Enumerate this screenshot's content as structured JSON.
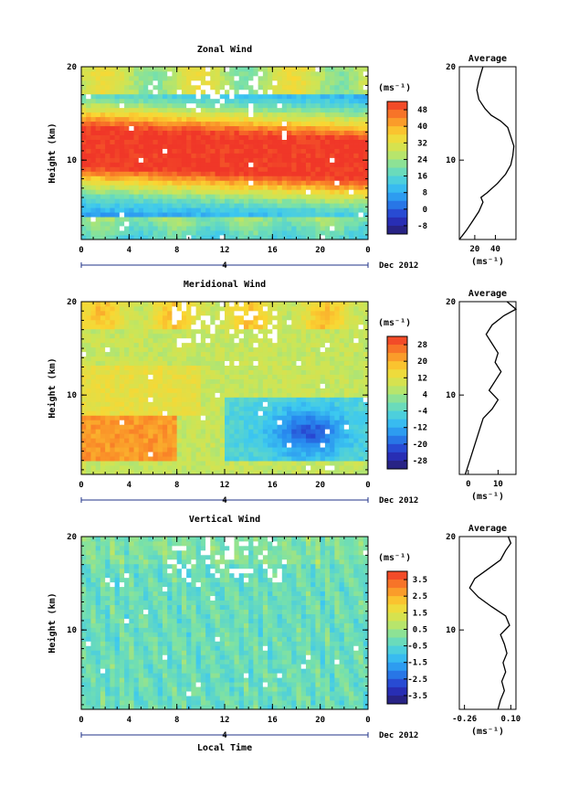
{
  "chart_data": [
    {
      "type": "heatmap",
      "name": "zonal",
      "title": "Zonal Wind",
      "ylabel": "Height (km)",
      "xlabel": "",
      "x_ticks": [
        "0",
        "4",
        "8",
        "12",
        "16",
        "20",
        "0"
      ],
      "y_ticks": [
        "10",
        "20"
      ],
      "xlim": [
        0,
        24
      ],
      "ylim": [
        1.5,
        20
      ],
      "date_marker": "4",
      "date_label": "Dec 2012",
      "colorbar": {
        "unit": "(ms⁻¹)",
        "ticks": [
          "48",
          "40",
          "32",
          "24",
          "16",
          "8",
          "0",
          "-8"
        ],
        "range": [
          -12,
          52
        ]
      },
      "average": {
        "title": "Average",
        "x_ticks": [
          "20",
          "40"
        ],
        "xlim": [
          5,
          60
        ],
        "unit": "(ms⁻¹)",
        "y_ticks": [
          "10",
          "20"
        ],
        "profile": [
          [
            5,
            1.5
          ],
          [
            12,
            2.5
          ],
          [
            18,
            3.5
          ],
          [
            24,
            4.5
          ],
          [
            28,
            5.5
          ],
          [
            26,
            6.0
          ],
          [
            32,
            6.5
          ],
          [
            42,
            7.5
          ],
          [
            50,
            8.5
          ],
          [
            55,
            9.5
          ],
          [
            57,
            10.5
          ],
          [
            58,
            11.5
          ],
          [
            55,
            12.5
          ],
          [
            52,
            13.5
          ],
          [
            45,
            14.2
          ],
          [
            36,
            14.8
          ],
          [
            30,
            15.5
          ],
          [
            24,
            16.5
          ],
          [
            22,
            17.5
          ],
          [
            24,
            18.5
          ],
          [
            26,
            19.3
          ],
          [
            28,
            20
          ]
        ]
      }
    },
    {
      "type": "heatmap",
      "name": "meridional",
      "title": "Meridional Wind",
      "ylabel": "Height (km)",
      "xlabel": "",
      "x_ticks": [
        "0",
        "4",
        "8",
        "12",
        "16",
        "20",
        "0"
      ],
      "y_ticks": [
        "10",
        "20"
      ],
      "xlim": [
        0,
        24
      ],
      "ylim": [
        1.5,
        20
      ],
      "date_marker": "4",
      "date_label": "Dec 2012",
      "colorbar": {
        "unit": "(ms⁻¹)",
        "ticks": [
          "28",
          "20",
          "12",
          "4",
          "-4",
          "-12",
          "-20",
          "-28"
        ],
        "range": [
          -32,
          32
        ]
      },
      "average": {
        "title": "Average",
        "x_ticks": [
          "0",
          "10"
        ],
        "xlim": [
          -3,
          16
        ],
        "unit": "(ms⁻¹)",
        "y_ticks": [
          "10",
          "20"
        ],
        "profile": [
          [
            -1,
            1.5
          ],
          [
            0,
            2.5
          ],
          [
            1,
            3.5
          ],
          [
            2,
            4.5
          ],
          [
            3,
            5.5
          ],
          [
            4,
            6.5
          ],
          [
            5,
            7.5
          ],
          [
            8,
            8.5
          ],
          [
            10,
            9.5
          ],
          [
            7,
            10.5
          ],
          [
            9,
            11.5
          ],
          [
            11,
            12.5
          ],
          [
            9,
            13.5
          ],
          [
            10,
            14.5
          ],
          [
            8,
            15.5
          ],
          [
            6,
            16.5
          ],
          [
            8,
            17.5
          ],
          [
            12,
            18.5
          ],
          [
            16,
            19.2
          ],
          [
            13,
            20
          ]
        ]
      }
    },
    {
      "type": "heatmap",
      "name": "vertical",
      "title": "Vertical Wind",
      "ylabel": "Height (km)",
      "xlabel": "Local Time",
      "x_ticks": [
        "0",
        "4",
        "8",
        "12",
        "16",
        "20",
        "0"
      ],
      "y_ticks": [
        "10",
        "20"
      ],
      "xlim": [
        0,
        24
      ],
      "ylim": [
        1.5,
        20
      ],
      "date_marker": "4",
      "date_label": "Dec 2012",
      "colorbar": {
        "unit": "(ms⁻¹)",
        "ticks": [
          "3.5",
          "2.5",
          "1.5",
          "0.5",
          "-0.5",
          "-1.5",
          "-2.5",
          "-3.5"
        ],
        "range": [
          -4,
          4
        ]
      },
      "average": {
        "title": "Average",
        "x_ticks": [
          "-0.26",
          "0.10"
        ],
        "xlim": [
          -0.3,
          0.14
        ],
        "unit": "(ms⁻¹)",
        "y_ticks": [
          "10",
          "20"
        ],
        "profile": [
          [
            0.0,
            1.5
          ],
          [
            0.02,
            2.5
          ],
          [
            0.05,
            3.5
          ],
          [
            0.03,
            4.5
          ],
          [
            0.06,
            5.5
          ],
          [
            0.04,
            6.5
          ],
          [
            0.07,
            7.5
          ],
          [
            0.05,
            8.5
          ],
          [
            0.02,
            9.5
          ],
          [
            0.09,
            10.5
          ],
          [
            0.06,
            11.5
          ],
          [
            -0.05,
            12.5
          ],
          [
            -0.15,
            13.5
          ],
          [
            -0.22,
            14.5
          ],
          [
            -0.18,
            15.5
          ],
          [
            -0.08,
            16.5
          ],
          [
            0.02,
            17.5
          ],
          [
            0.06,
            18.5
          ],
          [
            0.1,
            19.3
          ],
          [
            0.08,
            20
          ]
        ]
      }
    }
  ]
}
